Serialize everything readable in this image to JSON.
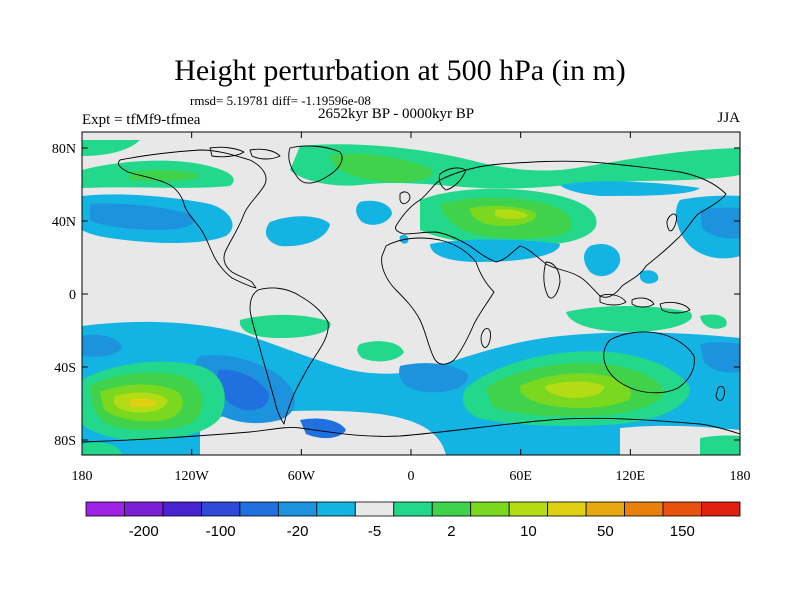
{
  "title": "Height perturbation at 500 hPa (in m)",
  "stats": "rmsd= 5.19781 diff= -1.19596e-08",
  "experiment": "Expt = tfMf9-tfmea",
  "period": "2652kyr BP - 0000kyr BP",
  "season": "JJA",
  "axes": {
    "x_ticks": [
      "180",
      "120W",
      "60W",
      "0",
      "60E",
      "120E",
      "180"
    ],
    "y_ticks": [
      "80N",
      "40N",
      "0",
      "40S",
      "80S"
    ]
  },
  "colorbar": {
    "colors": [
      "#9e23e6",
      "#7a1fd6",
      "#4a23d0",
      "#2f4ad8",
      "#2170e0",
      "#1c93dc",
      "#13b3e3",
      "#e8e8e8",
      "#23d88a",
      "#3fd24a",
      "#7ad81e",
      "#b3dc14",
      "#dfd012",
      "#e8a812",
      "#e8800e",
      "#e8520c",
      "#e02010"
    ],
    "labels": [
      "-200",
      "-100",
      "-20",
      "-5",
      "2",
      "10",
      "50",
      "150"
    ]
  },
  "palette": {
    "background": "#e8e8e8",
    "coast": "#000000"
  }
}
